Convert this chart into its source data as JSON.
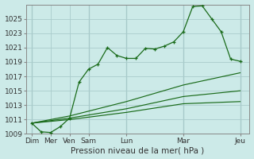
{
  "background_color": "#cceae8",
  "grid_color": "#aacccc",
  "line_color": "#1a6b1a",
  "xlabel": "Pression niveau de la mer( hPa )",
  "ylim": [
    1009,
    1027
  ],
  "yticks": [
    1009,
    1011,
    1013,
    1015,
    1017,
    1019,
    1021,
    1023,
    1025
  ],
  "xlim": [
    -0.3,
    11.5
  ],
  "main_line": {
    "x": [
      0,
      0.5,
      1,
      1.5,
      2,
      2.5,
      3,
      3.5,
      4,
      4.5,
      5,
      5.5,
      6,
      6.5,
      7,
      7.5,
      8,
      8.5,
      9,
      9.5,
      10,
      10.5,
      11
    ],
    "y": [
      1010.5,
      1009.3,
      1009.2,
      1010.0,
      1011.2,
      1016.2,
      1018.0,
      1018.7,
      1021.0,
      1019.9,
      1019.5,
      1019.5,
      1020.9,
      1020.8,
      1021.2,
      1021.8,
      1023.2,
      1026.7,
      1026.8,
      1025.0,
      1023.2,
      1019.4,
      1019.1
    ]
  },
  "fan_lines": [
    {
      "x": [
        0,
        2,
        5,
        8,
        11
      ],
      "y": [
        1010.5,
        1011.5,
        1013.5,
        1015.8,
        1017.5
      ]
    },
    {
      "x": [
        0,
        2,
        5,
        8,
        11
      ],
      "y": [
        1010.5,
        1011.2,
        1012.5,
        1014.2,
        1015.0
      ]
    },
    {
      "x": [
        0,
        2,
        5,
        8,
        11
      ],
      "y": [
        1010.5,
        1011.0,
        1012.0,
        1013.2,
        1013.5
      ]
    }
  ],
  "tick_pos": [
    0,
    1,
    2,
    3,
    5,
    8,
    11
  ],
  "tick_lab": [
    "Dim",
    "Mer",
    "Ven",
    "Sam",
    "Lun",
    "Mar",
    "Jeu"
  ],
  "vlines": [
    0,
    3,
    5,
    8,
    11
  ]
}
